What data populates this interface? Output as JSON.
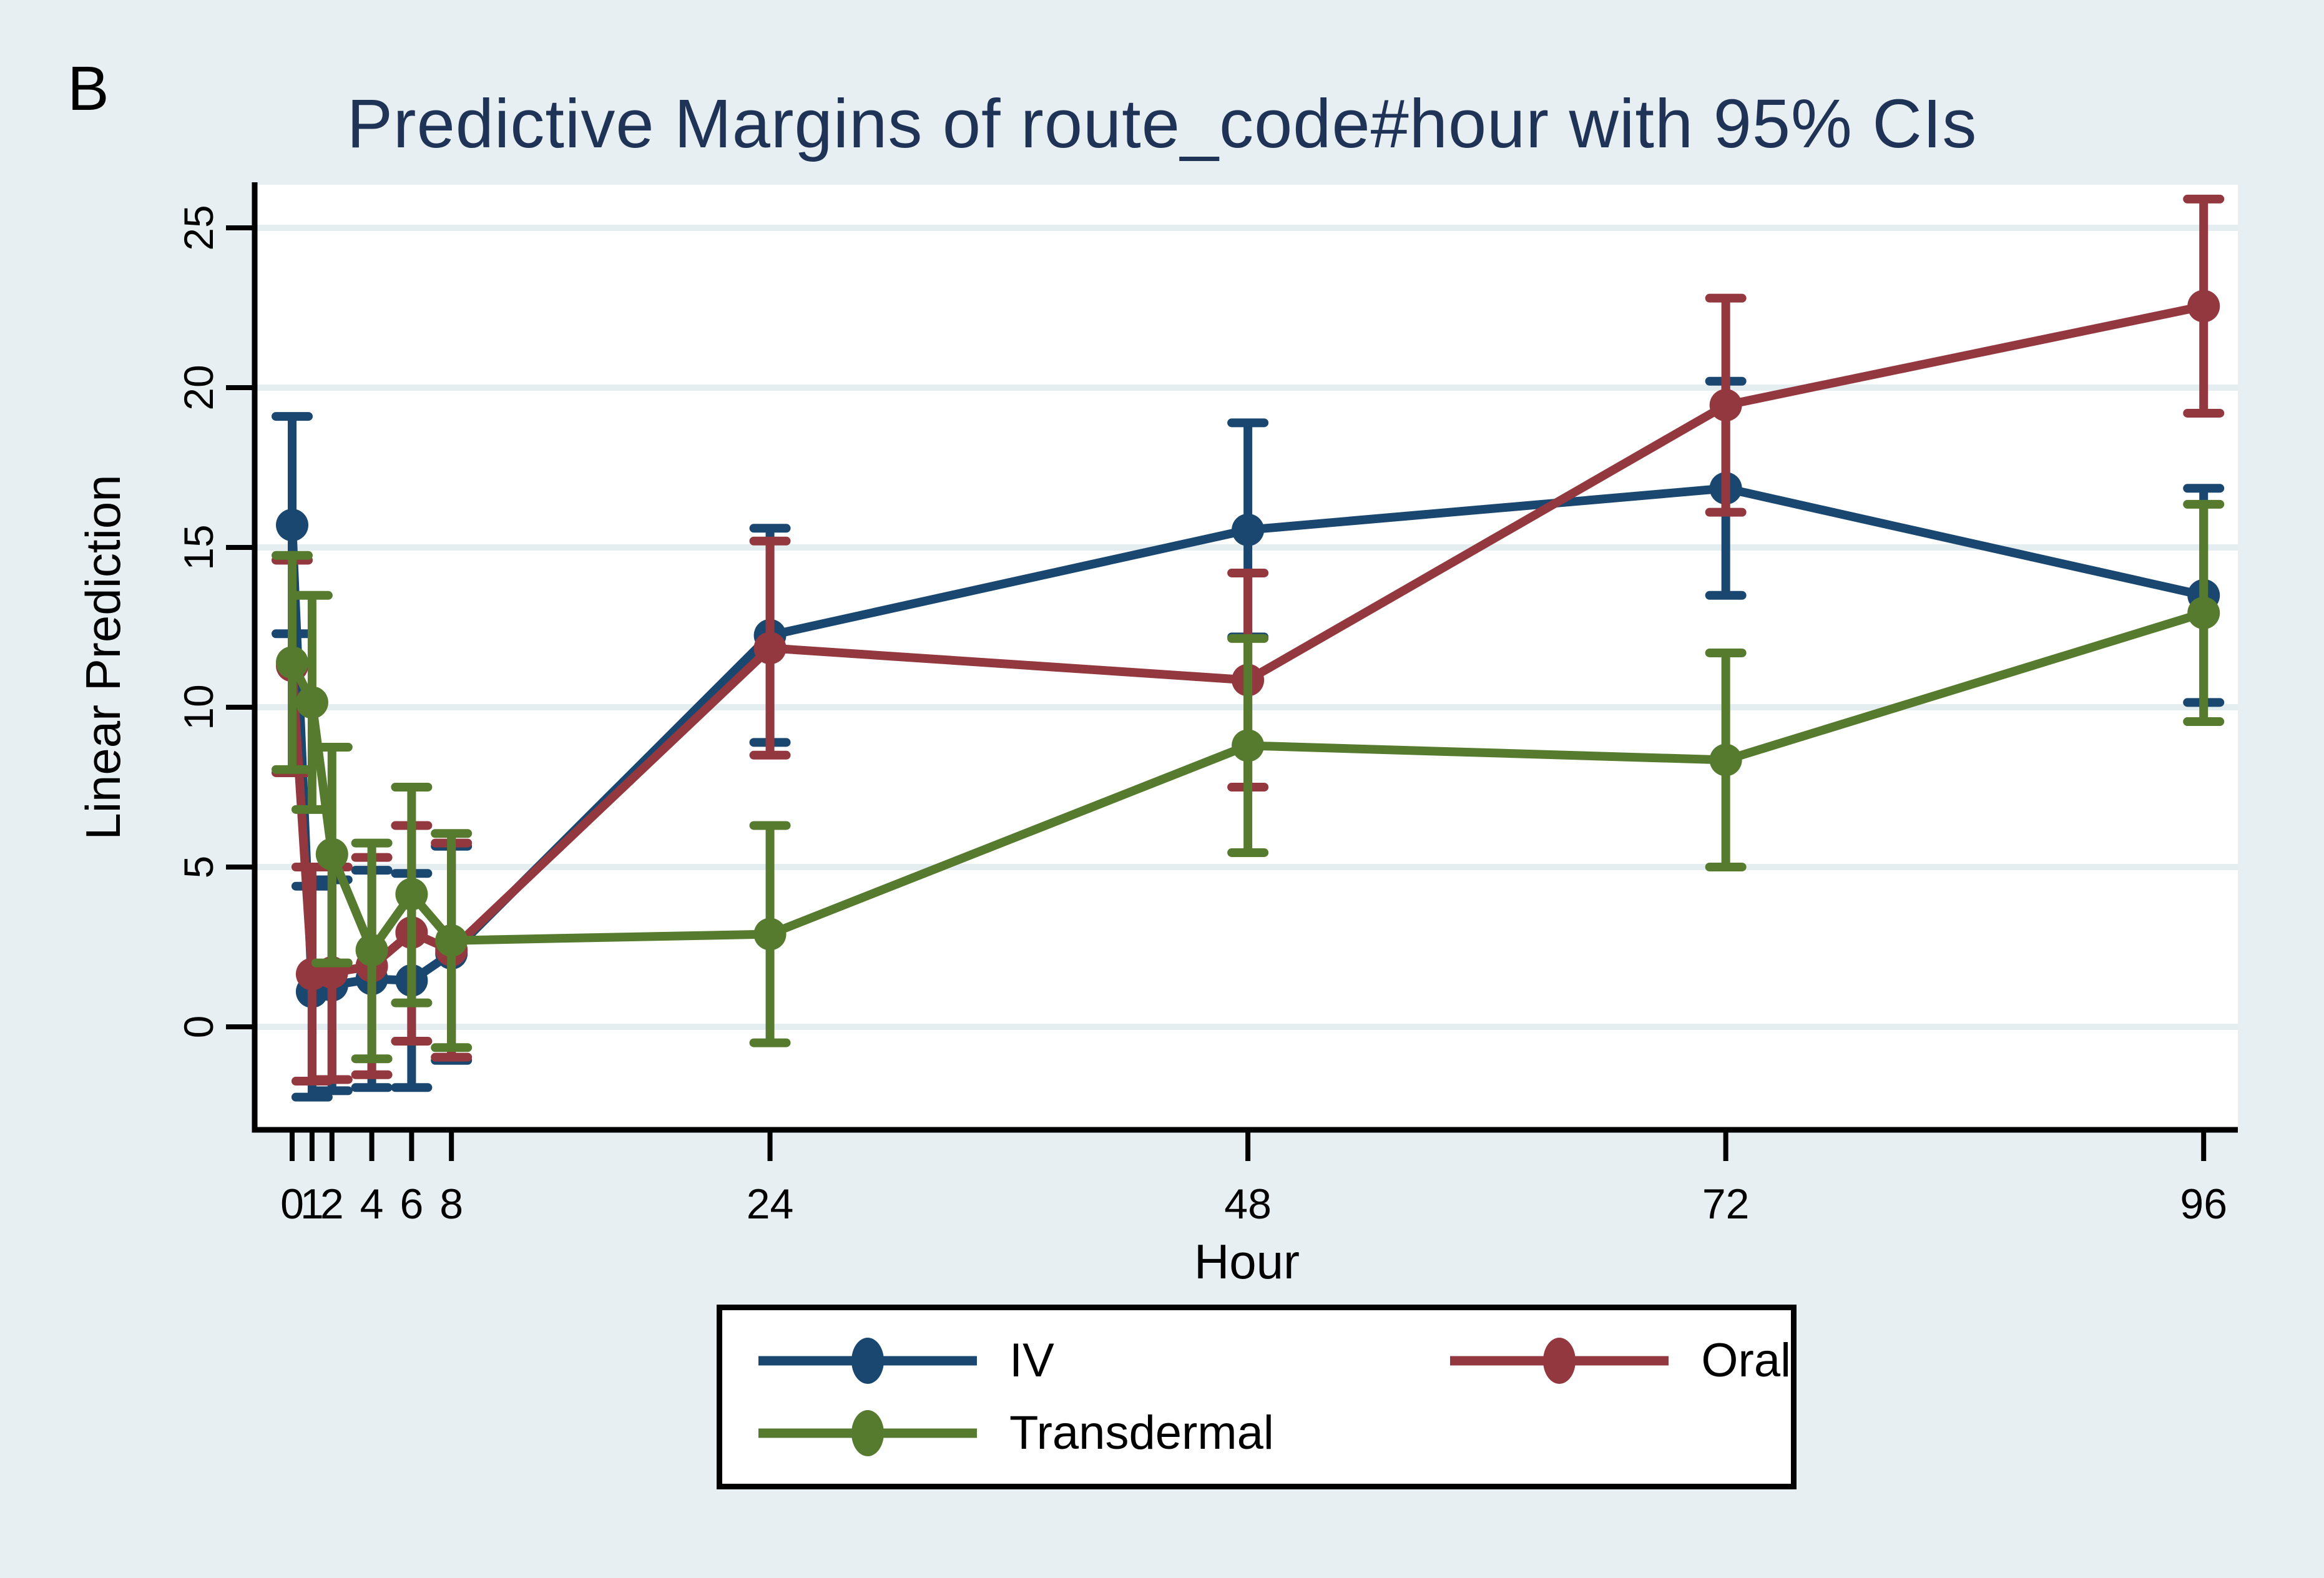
{
  "panel_label": "B",
  "chart_data": {
    "type": "line",
    "title": "Predictive Margins of route_code#hour with 95% CIs",
    "xlabel": "Hour",
    "ylabel": "Linear Prediction",
    "x_ticks": [
      0,
      1,
      2,
      4,
      6,
      8,
      24,
      48,
      72,
      96
    ],
    "y_ticks": [
      0,
      5,
      10,
      15,
      20,
      25
    ],
    "xlim": [
      0,
      96
    ],
    "ylim": [
      -3.3,
      26.5
    ],
    "grid": "horizontal",
    "legend_position": "bottom-center",
    "error_bars": "95% CI",
    "y_tick_label_angle": "vertical",
    "series": [
      {
        "name": "IV",
        "color": "#1a476f",
        "points": [
          {
            "x": 0,
            "y": 15.7,
            "lo": 12.3,
            "hi": 19.1
          },
          {
            "x": 1,
            "y": 1.1,
            "lo": -2.2,
            "hi": 4.4
          },
          {
            "x": 2,
            "y": 1.3,
            "lo": -2.0,
            "hi": 4.6
          },
          {
            "x": 4,
            "y": 1.5,
            "lo": -1.9,
            "hi": 4.9
          },
          {
            "x": 6,
            "y": 1.45,
            "lo": -1.9,
            "hi": 4.8
          },
          {
            "x": 8,
            "y": 2.3,
            "lo": -1.05,
            "hi": 5.65
          },
          {
            "x": 24,
            "y": 12.25,
            "lo": 8.9,
            "hi": 15.6
          },
          {
            "x": 48,
            "y": 15.55,
            "lo": 12.2,
            "hi": 18.9
          },
          {
            "x": 72,
            "y": 16.85,
            "lo": 13.5,
            "hi": 20.2
          },
          {
            "x": 96,
            "y": 13.5,
            "lo": 10.15,
            "hi": 16.85
          }
        ]
      },
      {
        "name": "Oral",
        "color": "#94383f",
        "points": [
          {
            "x": 0,
            "y": 11.3,
            "lo": 7.95,
            "hi": 14.6
          },
          {
            "x": 1,
            "y": 1.65,
            "lo": -1.7,
            "hi": 5.0
          },
          {
            "x": 2,
            "y": 1.7,
            "lo": -1.65,
            "hi": 5.0
          },
          {
            "x": 4,
            "y": 1.9,
            "lo": -1.5,
            "hi": 5.3
          },
          {
            "x": 6,
            "y": 2.95,
            "lo": -0.45,
            "hi": 6.3
          },
          {
            "x": 8,
            "y": 2.4,
            "lo": -0.95,
            "hi": 5.75
          },
          {
            "x": 24,
            "y": 11.85,
            "lo": 8.5,
            "hi": 15.2
          },
          {
            "x": 48,
            "y": 10.85,
            "lo": 7.5,
            "hi": 14.2
          },
          {
            "x": 72,
            "y": 19.45,
            "lo": 16.1,
            "hi": 22.8
          },
          {
            "x": 96,
            "y": 22.55,
            "lo": 19.2,
            "hi": 25.9
          }
        ]
      },
      {
        "name": "Transdermal",
        "color": "#567b2f",
        "points": [
          {
            "x": 0,
            "y": 11.4,
            "lo": 8.05,
            "hi": 14.75
          },
          {
            "x": 1,
            "y": 10.15,
            "lo": 6.8,
            "hi": 13.5
          },
          {
            "x": 2,
            "y": 5.4,
            "lo": 2.0,
            "hi": 8.75
          },
          {
            "x": 4,
            "y": 2.4,
            "lo": -1.0,
            "hi": 5.75
          },
          {
            "x": 6,
            "y": 4.15,
            "lo": 0.75,
            "hi": 7.5
          },
          {
            "x": 8,
            "y": 2.7,
            "lo": -0.65,
            "hi": 6.05
          },
          {
            "x": 24,
            "y": 2.9,
            "lo": -0.5,
            "hi": 6.3
          },
          {
            "x": 48,
            "y": 8.8,
            "lo": 5.45,
            "hi": 12.15
          },
          {
            "x": 72,
            "y": 8.35,
            "lo": 5.0,
            "hi": 11.7
          },
          {
            "x": 96,
            "y": 12.95,
            "lo": 9.55,
            "hi": 16.35
          }
        ]
      }
    ]
  },
  "legend": {
    "entries": [
      {
        "label": "IV",
        "color": "#1a476f"
      },
      {
        "label": "Oral",
        "color": "#94383f"
      },
      {
        "label": "Transdermal",
        "color": "#567b2f"
      }
    ]
  },
  "colors": {
    "background": "#e8eff2",
    "plot_background": "#ffffff",
    "gridline": "#e4edf0",
    "axis": "#000000",
    "title": "#1f3356"
  }
}
